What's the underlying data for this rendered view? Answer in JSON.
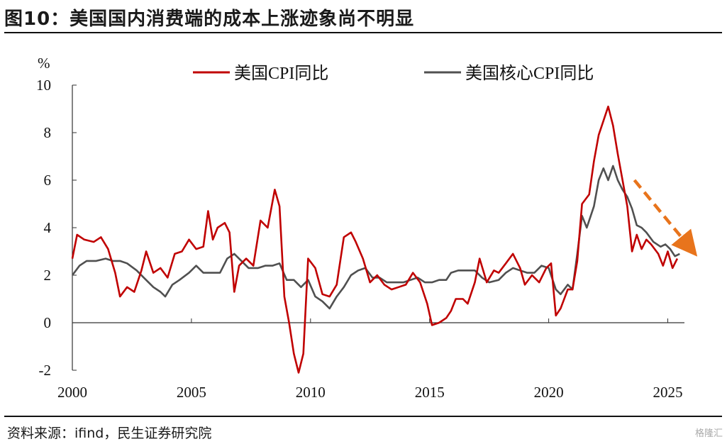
{
  "header": {
    "title": "图10：美国国内消费端的成本上涨迹象尚不明显"
  },
  "footer": {
    "source": "资料来源：ifind，民生证券研究院",
    "watermark": "格隆汇"
  },
  "colors": {
    "cpi": "#c00000",
    "core": "#505050",
    "arrow": "#e8741c"
  },
  "chart_data": {
    "type": "line",
    "ylabel": "%",
    "ylim": [
      -2,
      10
    ],
    "yticks": [
      "-2",
      "0",
      "2",
      "4",
      "6",
      "8",
      "10"
    ],
    "xlim": [
      2000,
      2025.7
    ],
    "xticks": [
      "2000",
      "2005",
      "2010",
      "2015",
      "2020",
      "2025"
    ],
    "legend_position": "top",
    "series": [
      {
        "name": "美国CPI同比",
        "color": "#c00000",
        "points": [
          [
            2000.0,
            2.7
          ],
          [
            2000.2,
            3.7
          ],
          [
            2000.5,
            3.5
          ],
          [
            2000.9,
            3.4
          ],
          [
            2001.2,
            3.6
          ],
          [
            2001.5,
            3.1
          ],
          [
            2001.8,
            2.1
          ],
          [
            2002.0,
            1.1
          ],
          [
            2002.3,
            1.5
          ],
          [
            2002.6,
            1.3
          ],
          [
            2002.9,
            2.2
          ],
          [
            2003.1,
            3.0
          ],
          [
            2003.4,
            2.1
          ],
          [
            2003.7,
            2.3
          ],
          [
            2004.0,
            1.9
          ],
          [
            2004.3,
            2.9
          ],
          [
            2004.6,
            3.0
          ],
          [
            2004.9,
            3.5
          ],
          [
            2005.2,
            3.1
          ],
          [
            2005.5,
            3.2
          ],
          [
            2005.7,
            4.7
          ],
          [
            2005.9,
            3.5
          ],
          [
            2006.1,
            4.0
          ],
          [
            2006.4,
            4.2
          ],
          [
            2006.6,
            3.8
          ],
          [
            2006.8,
            1.3
          ],
          [
            2007.0,
            2.4
          ],
          [
            2007.3,
            2.7
          ],
          [
            2007.6,
            2.4
          ],
          [
            2007.9,
            4.3
          ],
          [
            2008.2,
            4.0
          ],
          [
            2008.5,
            5.6
          ],
          [
            2008.7,
            4.9
          ],
          [
            2008.9,
            1.1
          ],
          [
            2009.1,
            0.0
          ],
          [
            2009.3,
            -1.3
          ],
          [
            2009.5,
            -2.1
          ],
          [
            2009.7,
            -1.3
          ],
          [
            2009.9,
            2.7
          ],
          [
            2010.2,
            2.3
          ],
          [
            2010.5,
            1.2
          ],
          [
            2010.8,
            1.1
          ],
          [
            2011.1,
            1.6
          ],
          [
            2011.4,
            3.6
          ],
          [
            2011.7,
            3.8
          ],
          [
            2011.9,
            3.4
          ],
          [
            2012.2,
            2.7
          ],
          [
            2012.5,
            1.7
          ],
          [
            2012.8,
            2.0
          ],
          [
            2013.1,
            1.6
          ],
          [
            2013.4,
            1.4
          ],
          [
            2013.7,
            1.5
          ],
          [
            2014.0,
            1.6
          ],
          [
            2014.3,
            2.1
          ],
          [
            2014.6,
            1.7
          ],
          [
            2014.9,
            0.8
          ],
          [
            2015.1,
            -0.1
          ],
          [
            2015.4,
            0.0
          ],
          [
            2015.7,
            0.2
          ],
          [
            2015.9,
            0.5
          ],
          [
            2016.1,
            1.0
          ],
          [
            2016.4,
            1.0
          ],
          [
            2016.6,
            0.8
          ],
          [
            2016.9,
            1.7
          ],
          [
            2017.1,
            2.7
          ],
          [
            2017.4,
            1.7
          ],
          [
            2017.7,
            2.2
          ],
          [
            2017.9,
            2.1
          ],
          [
            2018.2,
            2.5
          ],
          [
            2018.5,
            2.9
          ],
          [
            2018.8,
            2.3
          ],
          [
            2019.0,
            1.6
          ],
          [
            2019.3,
            2.0
          ],
          [
            2019.6,
            1.7
          ],
          [
            2019.9,
            2.3
          ],
          [
            2020.1,
            2.5
          ],
          [
            2020.3,
            0.3
          ],
          [
            2020.5,
            0.6
          ],
          [
            2020.8,
            1.4
          ],
          [
            2021.0,
            1.4
          ],
          [
            2021.2,
            2.6
          ],
          [
            2021.4,
            5.0
          ],
          [
            2021.7,
            5.4
          ],
          [
            2021.9,
            6.8
          ],
          [
            2022.1,
            7.9
          ],
          [
            2022.3,
            8.5
          ],
          [
            2022.5,
            9.1
          ],
          [
            2022.7,
            8.3
          ],
          [
            2022.9,
            7.1
          ],
          [
            2023.1,
            6.0
          ],
          [
            2023.3,
            4.9
          ],
          [
            2023.5,
            3.0
          ],
          [
            2023.7,
            3.7
          ],
          [
            2023.9,
            3.1
          ],
          [
            2024.1,
            3.5
          ],
          [
            2024.3,
            3.3
          ],
          [
            2024.6,
            2.9
          ],
          [
            2024.8,
            2.4
          ],
          [
            2025.0,
            3.0
          ],
          [
            2025.2,
            2.3
          ],
          [
            2025.4,
            2.7
          ]
        ]
      },
      {
        "name": "美国核心CPI同比",
        "color": "#505050",
        "points": [
          [
            2000.0,
            2.0
          ],
          [
            2000.3,
            2.4
          ],
          [
            2000.6,
            2.6
          ],
          [
            2001.0,
            2.6
          ],
          [
            2001.4,
            2.7
          ],
          [
            2001.7,
            2.6
          ],
          [
            2002.0,
            2.6
          ],
          [
            2002.3,
            2.5
          ],
          [
            2002.7,
            2.2
          ],
          [
            2003.0,
            1.9
          ],
          [
            2003.4,
            1.5
          ],
          [
            2003.7,
            1.3
          ],
          [
            2003.9,
            1.1
          ],
          [
            2004.2,
            1.6
          ],
          [
            2004.5,
            1.8
          ],
          [
            2004.9,
            2.1
          ],
          [
            2005.2,
            2.4
          ],
          [
            2005.5,
            2.1
          ],
          [
            2005.9,
            2.1
          ],
          [
            2006.2,
            2.1
          ],
          [
            2006.5,
            2.7
          ],
          [
            2006.8,
            2.9
          ],
          [
            2007.1,
            2.6
          ],
          [
            2007.4,
            2.3
          ],
          [
            2007.8,
            2.3
          ],
          [
            2008.1,
            2.4
          ],
          [
            2008.4,
            2.4
          ],
          [
            2008.7,
            2.5
          ],
          [
            2009.0,
            1.8
          ],
          [
            2009.3,
            1.8
          ],
          [
            2009.6,
            1.5
          ],
          [
            2009.9,
            1.8
          ],
          [
            2010.2,
            1.1
          ],
          [
            2010.5,
            0.9
          ],
          [
            2010.8,
            0.6
          ],
          [
            2011.1,
            1.1
          ],
          [
            2011.4,
            1.5
          ],
          [
            2011.7,
            2.0
          ],
          [
            2012.0,
            2.2
          ],
          [
            2012.3,
            2.3
          ],
          [
            2012.6,
            1.9
          ],
          [
            2012.9,
            1.9
          ],
          [
            2013.2,
            1.7
          ],
          [
            2013.5,
            1.7
          ],
          [
            2013.9,
            1.7
          ],
          [
            2014.2,
            1.8
          ],
          [
            2014.5,
            1.9
          ],
          [
            2014.8,
            1.7
          ],
          [
            2015.1,
            1.7
          ],
          [
            2015.4,
            1.8
          ],
          [
            2015.7,
            1.8
          ],
          [
            2015.9,
            2.1
          ],
          [
            2016.2,
            2.2
          ],
          [
            2016.5,
            2.2
          ],
          [
            2016.9,
            2.2
          ],
          [
            2017.2,
            1.9
          ],
          [
            2017.5,
            1.7
          ],
          [
            2017.9,
            1.8
          ],
          [
            2018.2,
            2.1
          ],
          [
            2018.5,
            2.3
          ],
          [
            2018.8,
            2.2
          ],
          [
            2019.1,
            2.1
          ],
          [
            2019.4,
            2.1
          ],
          [
            2019.7,
            2.4
          ],
          [
            2020.0,
            2.3
          ],
          [
            2020.3,
            1.4
          ],
          [
            2020.5,
            1.2
          ],
          [
            2020.8,
            1.6
          ],
          [
            2021.0,
            1.4
          ],
          [
            2021.2,
            2.9
          ],
          [
            2021.4,
            4.5
          ],
          [
            2021.6,
            4.0
          ],
          [
            2021.9,
            4.9
          ],
          [
            2022.1,
            6.0
          ],
          [
            2022.3,
            6.5
          ],
          [
            2022.5,
            6.0
          ],
          [
            2022.7,
            6.6
          ],
          [
            2022.9,
            6.0
          ],
          [
            2023.1,
            5.6
          ],
          [
            2023.3,
            5.3
          ],
          [
            2023.5,
            4.8
          ],
          [
            2023.7,
            4.1
          ],
          [
            2023.9,
            4.0
          ],
          [
            2024.1,
            3.8
          ],
          [
            2024.4,
            3.4
          ],
          [
            2024.7,
            3.2
          ],
          [
            2024.9,
            3.3
          ],
          [
            2025.1,
            3.1
          ],
          [
            2025.3,
            2.8
          ],
          [
            2025.5,
            2.9
          ]
        ]
      }
    ],
    "annotations": [
      {
        "type": "arrow",
        "from": [
          2023.6,
          6.0
        ],
        "to": [
          2025.9,
          3.2
        ],
        "style": "dashed"
      }
    ]
  }
}
